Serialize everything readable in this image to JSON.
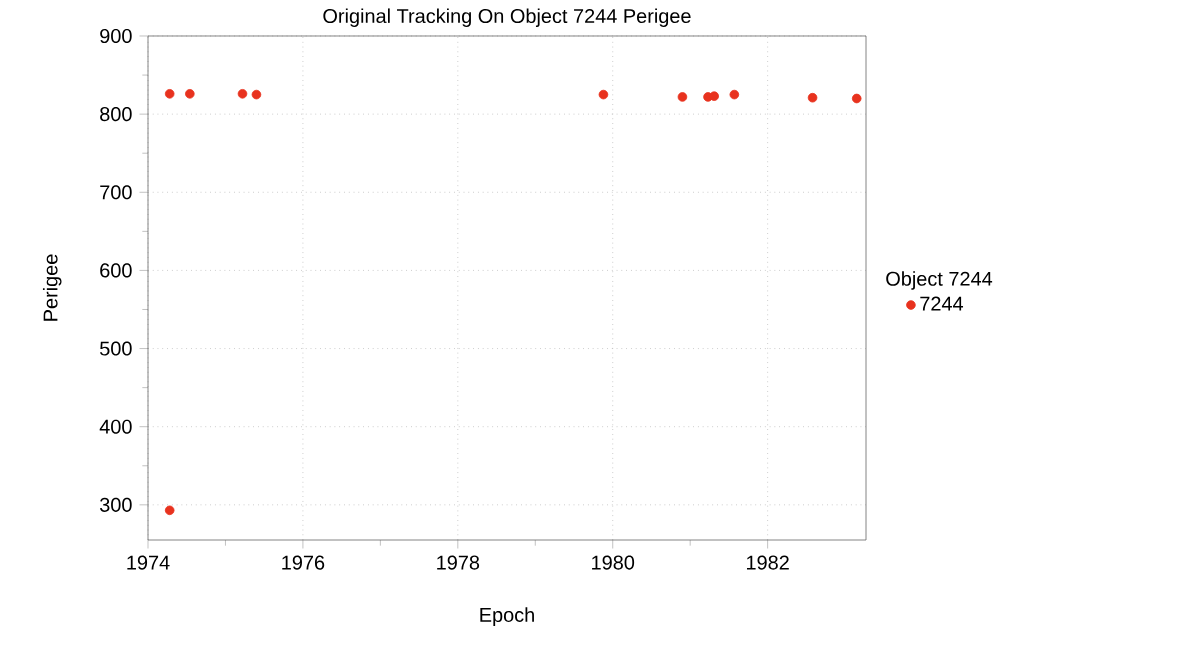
{
  "chart_data": {
    "type": "scatter",
    "title": "Original Tracking On Object 7244 Perigee",
    "xlabel": "Epoch",
    "ylabel": "Perigee",
    "legend_title": "Object 7244",
    "x": [
      1974.28,
      1974.28,
      1974.54,
      1975.22,
      1975.4,
      1979.88,
      1980.9,
      1981.23,
      1981.31,
      1981.57,
      1982.58,
      1983.15
    ],
    "series": [
      {
        "name": "7244",
        "color": "#e8321e",
        "values": [
          826,
          293,
          826,
          826,
          825,
          825,
          822,
          822,
          823,
          825,
          821,
          820
        ]
      }
    ],
    "xlim": [
      1974,
      1983.27
    ],
    "ylim": [
      255,
      900
    ],
    "xticks": [
      1974,
      1976,
      1978,
      1980,
      1982
    ],
    "yticks": [
      300,
      400,
      500,
      600,
      700,
      800,
      900
    ],
    "grid": true,
    "legend": "right",
    "marker": "circle"
  }
}
